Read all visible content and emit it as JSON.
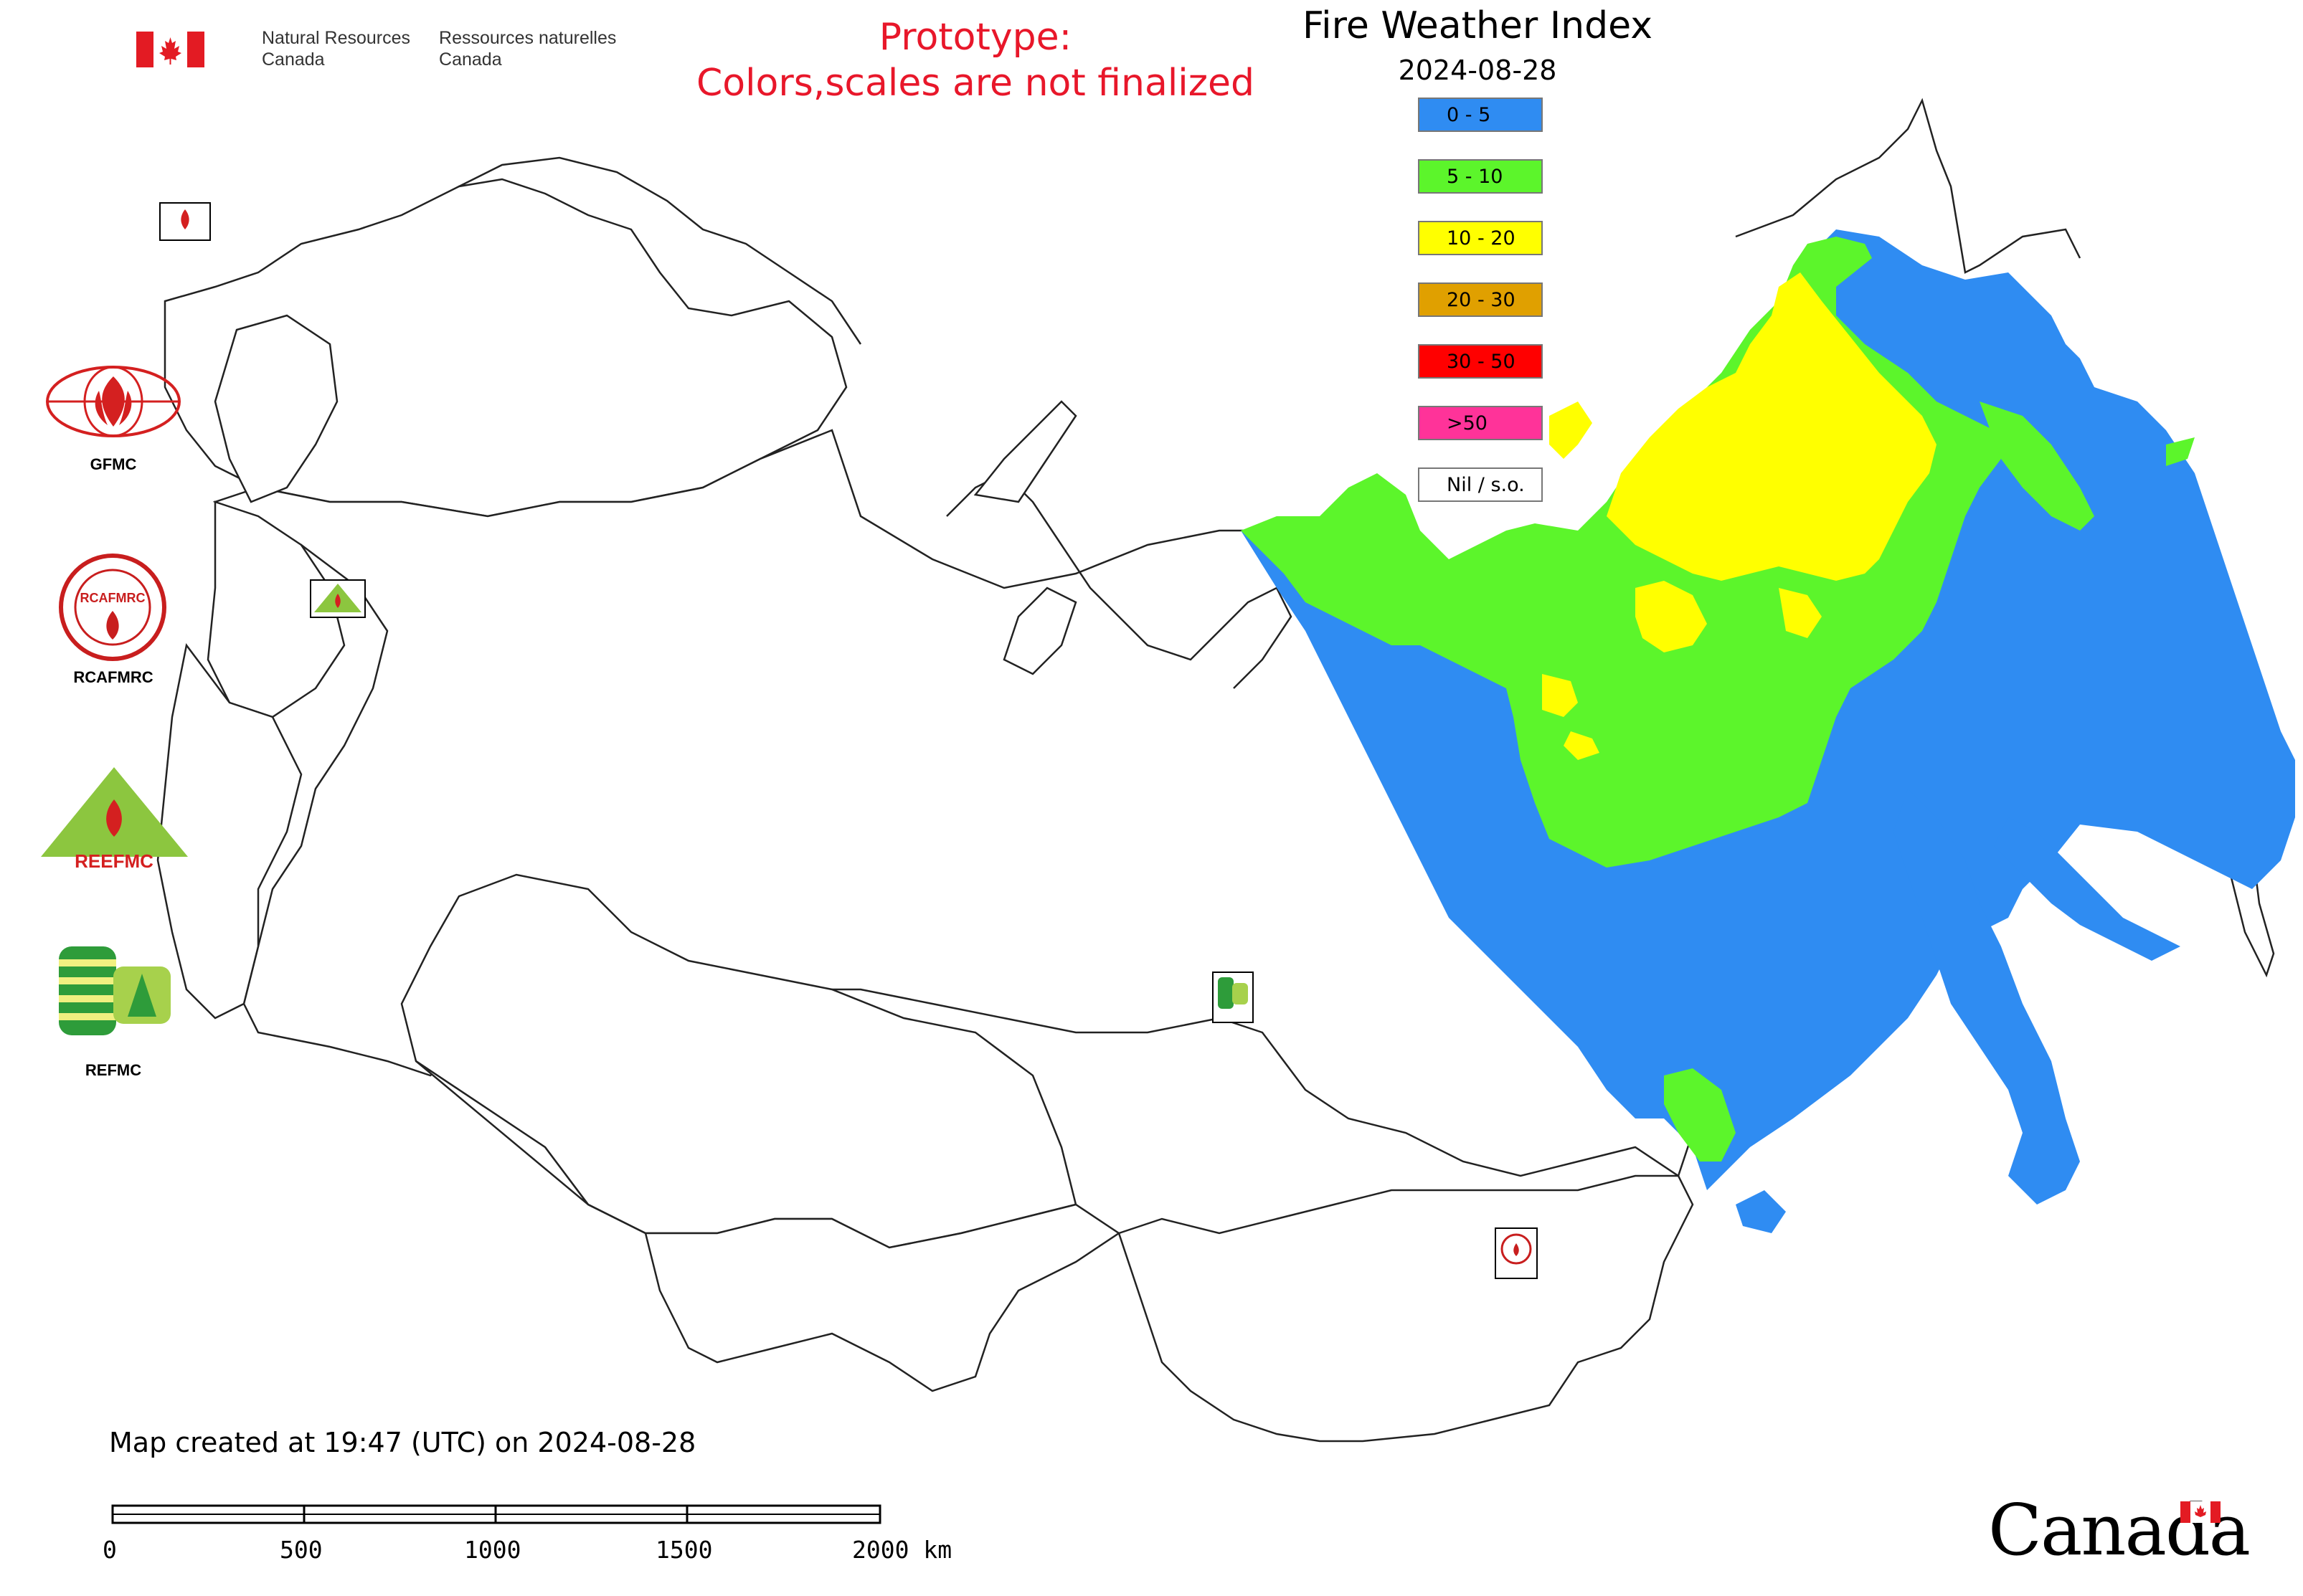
{
  "header": {
    "nrc_en_line1": "Natural Resources",
    "nrc_en_line2": "Canada",
    "nrc_fr_line1": "Ressources naturelles",
    "nrc_fr_line2": "Canada"
  },
  "notice": {
    "line1": "Prototype:",
    "line2": "Colors,scales are not finalized"
  },
  "title": "Fire Weather Index",
  "date": "2024-08-28",
  "legend": [
    {
      "label": "0 - 5",
      "color": "#2f8cf2"
    },
    {
      "label": "5 - 10",
      "color": "#5cf52b"
    },
    {
      "label": "10 - 20",
      "color": "#ffff00"
    },
    {
      "label": "20 - 30",
      "color": "#e0a000"
    },
    {
      "label": "30 - 50",
      "color": "#ff0000"
    },
    {
      "label": ">50",
      "color": "#ff3399"
    },
    {
      "label": "Nil / s.o.",
      "color": "#ffffff"
    }
  ],
  "logos": {
    "gfmc": "GFMC",
    "rcafmrc": "RCAFMRC",
    "reefmc": "REEFMC",
    "refmc": "REFMC"
  },
  "created_text": "Map created at 19:47 (UTC) on 2024-08-28",
  "scale_bar": {
    "ticks": [
      "0",
      "500",
      "1000",
      "1500",
      "2000 km"
    ]
  },
  "wordmark": "Canada",
  "colors": {
    "fwi_0_5": "#2f8cf2",
    "fwi_5_10": "#5cf52b",
    "fwi_10_20": "#ffff00",
    "border": "#222222"
  }
}
